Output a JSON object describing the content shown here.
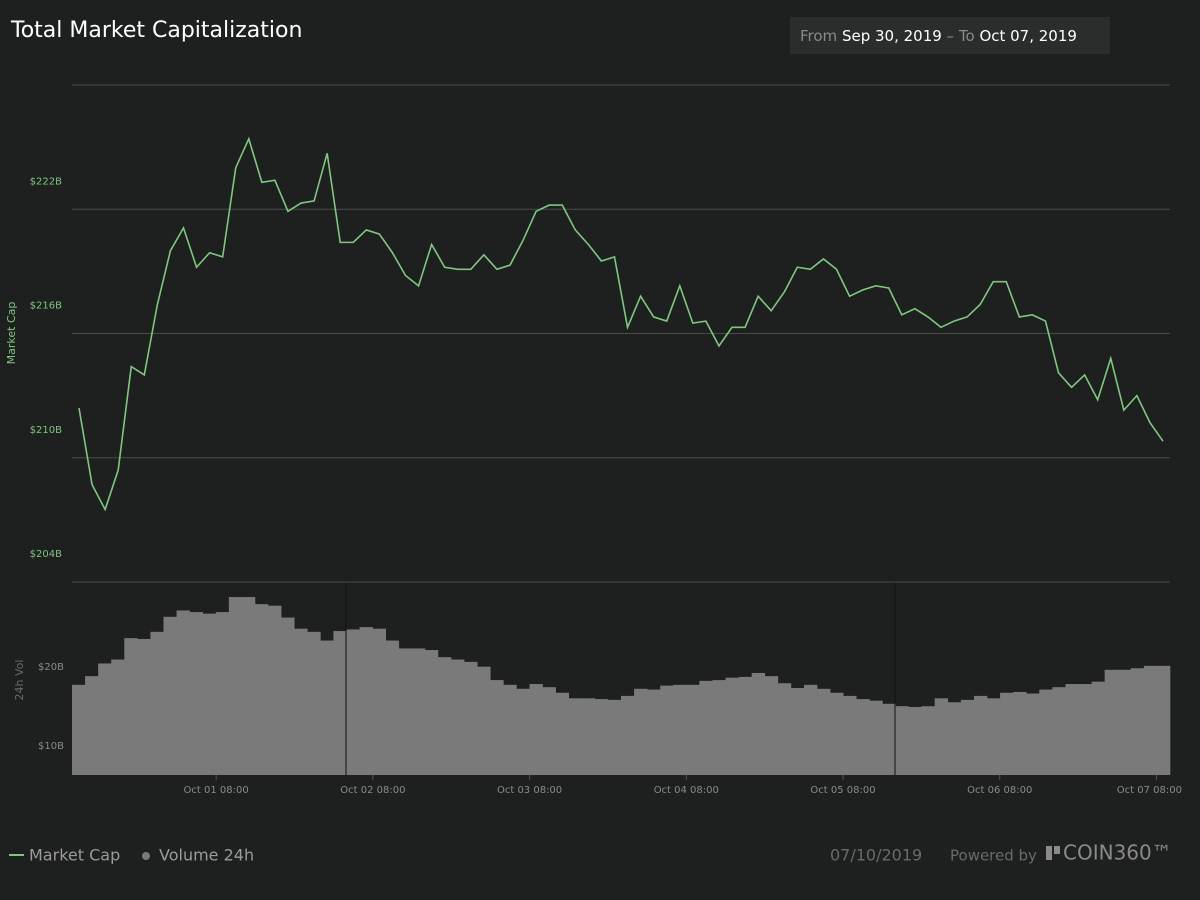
{
  "header": {
    "date_range": {
      "from_label": "From",
      "from": "Sep 30, 2019",
      "separator": "–",
      "to_label": "To",
      "to": "Oct 07, 2019"
    }
  },
  "chart_data": [
    {
      "type": "line",
      "title": "Total Market Capitalization",
      "y_label": "Market Cap",
      "xticks": [
        "Oct 01 08:00",
        "Oct 02 08:00",
        "Oct 03 08:00",
        "Oct 04 08:00",
        "Oct 05 08:00",
        "Oct 06 08:00",
        "Oct 07 08:00"
      ],
      "ylim": [
        204,
        228
      ],
      "yticks": [
        {
          "value": 204,
          "label": "$204B"
        },
        {
          "value": 210,
          "label": "$210B"
        },
        {
          "value": 216,
          "label": "$216B"
        },
        {
          "value": 222,
          "label": "$222B"
        }
      ],
      "grid": true,
      "series": [
        {
          "name": "Market Cap",
          "color": "#7fc77f",
          "values": [
            212.4,
            208.7,
            207.5,
            209.4,
            214.4,
            214.0,
            217.4,
            220.0,
            221.1,
            219.2,
            219.9,
            219.7,
            224.0,
            225.4,
            223.3,
            223.4,
            221.9,
            222.3,
            222.4,
            224.7,
            220.4,
            220.4,
            221.0,
            220.8,
            219.9,
            218.8,
            218.3,
            220.3,
            219.2,
            219.1,
            219.1,
            219.8,
            219.1,
            219.3,
            220.5,
            221.9,
            222.2,
            222.2,
            221.0,
            220.3,
            219.5,
            219.7,
            216.3,
            217.8,
            216.8,
            216.6,
            218.3,
            216.5,
            216.6,
            215.4,
            216.3,
            216.3,
            217.8,
            217.1,
            218.0,
            219.2,
            219.1,
            219.6,
            219.1,
            217.8,
            218.1,
            218.3,
            218.2,
            216.9,
            217.2,
            216.8,
            216.3,
            216.6,
            216.8,
            217.4,
            218.5,
            218.5,
            216.8,
            216.9,
            216.6,
            214.1,
            213.4,
            214.0,
            212.8,
            214.8,
            212.3,
            213.0,
            211.7,
            210.8
          ]
        }
      ]
    },
    {
      "type": "bar",
      "y_label": "24h Vol",
      "ylim": [
        10,
        34.4
      ],
      "yticks": [
        {
          "value": 10,
          "label": "$10B"
        },
        {
          "value": 20,
          "label": "$20B"
        }
      ],
      "series": [
        {
          "name": "Volume 24h",
          "color": "#7a7a7a",
          "values": [
            21.4,
            22.5,
            24.1,
            24.6,
            27.3,
            27.2,
            28.1,
            30.0,
            30.8,
            30.6,
            30.4,
            30.6,
            32.5,
            32.5,
            31.6,
            31.4,
            29.9,
            28.5,
            28.1,
            27.0,
            28.2,
            28.4,
            28.7,
            28.5,
            27.0,
            26.0,
            26.0,
            25.8,
            24.9,
            24.6,
            24.3,
            23.7,
            22.0,
            21.4,
            20.9,
            21.5,
            21.1,
            20.4,
            19.7,
            19.7,
            19.6,
            19.5,
            20.0,
            20.9,
            20.8,
            21.3,
            21.4,
            21.4,
            21.9,
            22.0,
            22.3,
            22.4,
            22.9,
            22.5,
            21.6,
            21.0,
            21.4,
            20.9,
            20.4,
            20.0,
            19.6,
            19.4,
            19.0,
            18.7,
            18.6,
            18.7,
            19.7,
            19.2,
            19.5,
            20.0,
            19.7,
            20.4,
            20.5,
            20.3,
            20.8,
            21.1,
            21.5,
            21.5,
            21.8,
            23.3,
            23.3,
            23.5,
            23.8,
            23.8
          ]
        }
      ]
    }
  ],
  "footer": {
    "date": "07/10/2019",
    "powered_by": "Powered by",
    "brand": "COIN360™"
  }
}
